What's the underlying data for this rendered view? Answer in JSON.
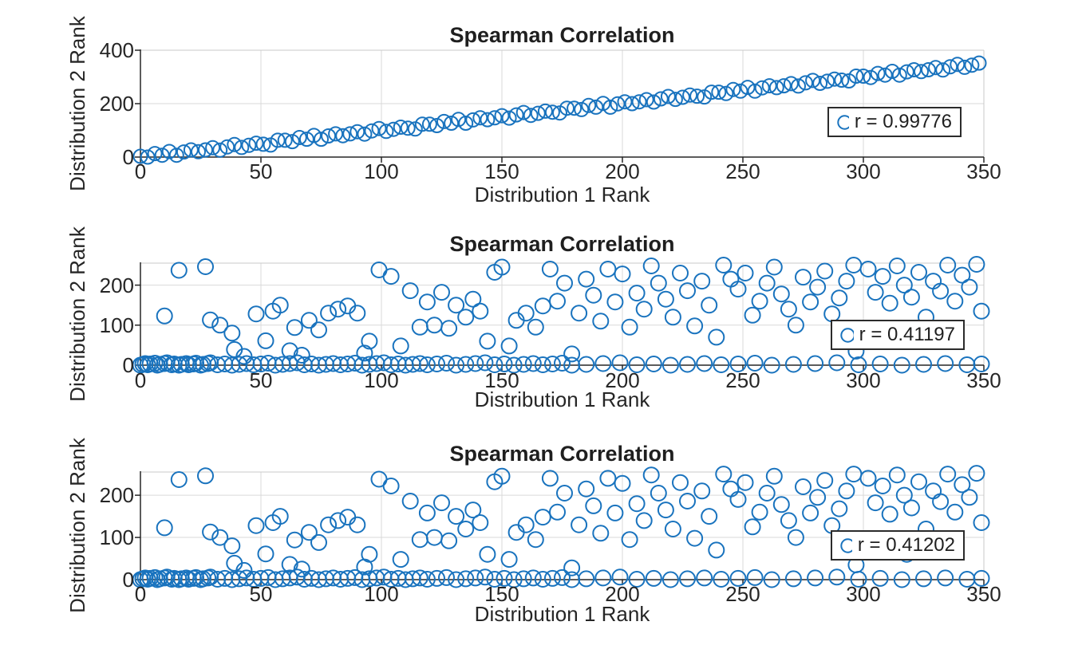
{
  "figure": {
    "background": "#ffffff",
    "marker_color": "#1973be",
    "axis_color": "#262626",
    "grid_color": "#d9d9d9",
    "box_color": "#c9c9c9",
    "legend_border_color": "#2b2b2b"
  },
  "chart_data": [
    {
      "type": "scatter",
      "title": "Spearman Correlation",
      "xlabel": "Distribution 1 Rank",
      "ylabel": "Distribution 2 Rank",
      "legend": "r = 0.99776",
      "xlim": [
        0,
        350
      ],
      "ylim": [
        0,
        400
      ],
      "xticks": [
        0,
        50,
        100,
        150,
        200,
        250,
        300,
        350
      ],
      "yticks": [
        0,
        200,
        400
      ],
      "grid": true,
      "legend_position": "lower right",
      "x": [
        0,
        3,
        6,
        9,
        12,
        15,
        18,
        21,
        24,
        27,
        30,
        33,
        36,
        39,
        42,
        45,
        48,
        51,
        54,
        57,
        60,
        63,
        66,
        69,
        72,
        75,
        78,
        81,
        84,
        87,
        90,
        93,
        96,
        99,
        102,
        105,
        108,
        111,
        114,
        117,
        120,
        123,
        126,
        129,
        132,
        135,
        138,
        141,
        144,
        147,
        150,
        153,
        156,
        159,
        162,
        165,
        168,
        171,
        174,
        177,
        180,
        183,
        186,
        189,
        192,
        195,
        198,
        201,
        204,
        207,
        210,
        213,
        216,
        219,
        222,
        225,
        228,
        231,
        234,
        237,
        240,
        243,
        246,
        249,
        252,
        255,
        258,
        261,
        264,
        267,
        270,
        273,
        276,
        279,
        282,
        285,
        288,
        291,
        294,
        297,
        300,
        303,
        306,
        309,
        312,
        315,
        318,
        321,
        324,
        327,
        330,
        333,
        336,
        339,
        342,
        345,
        348
      ],
      "y": [
        3,
        0,
        13,
        7,
        21,
        7,
        19,
        27,
        20,
        27,
        35,
        26,
        38,
        47,
        36,
        44,
        52,
        48,
        45,
        63,
        63,
        58,
        73,
        67,
        81,
        67,
        79,
        87,
        80,
        87,
        95,
        86,
        98,
        107,
        96,
        104,
        112,
        108,
        105,
        123,
        123,
        118,
        133,
        127,
        141,
        127,
        139,
        147,
        140,
        147,
        155,
        146,
        158,
        167,
        156,
        164,
        172,
        168,
        165,
        183,
        183,
        178,
        193,
        187,
        201,
        187,
        199,
        207,
        200,
        207,
        215,
        206,
        218,
        227,
        216,
        224,
        232,
        228,
        225,
        243,
        243,
        238,
        253,
        247,
        261,
        247,
        259,
        267,
        260,
        267,
        275,
        266,
        278,
        287,
        276,
        284,
        292,
        288,
        285,
        303,
        303,
        298,
        313,
        307,
        321,
        307,
        319,
        327,
        320,
        327,
        335,
        326,
        338,
        347,
        336,
        344,
        352
      ]
    },
    {
      "type": "scatter",
      "title": "Spearman Correlation",
      "xlabel": "Distribution 1 Rank",
      "ylabel": "Distribution 2 Rank",
      "legend": "r = 0.41197",
      "xlim": [
        0,
        350
      ],
      "ylim": [
        0,
        255
      ],
      "xticks": [
        0,
        50,
        100,
        150,
        200,
        250,
        300,
        350
      ],
      "yticks": [
        0,
        100,
        200
      ],
      "grid": true,
      "legend_position": "right",
      "x": [
        0,
        1,
        2,
        3,
        4,
        6,
        7,
        8,
        10,
        11,
        13,
        14,
        16,
        17,
        19,
        20,
        22,
        23,
        25,
        26,
        28,
        29,
        32,
        35,
        38,
        41,
        44,
        47,
        50,
        53,
        56,
        59,
        62,
        65,
        68,
        71,
        74,
        77,
        80,
        83,
        86,
        89,
        92,
        95,
        98,
        101,
        104,
        107,
        110,
        113,
        116,
        119,
        123,
        127,
        131,
        135,
        139,
        143,
        147,
        151,
        155,
        159,
        163,
        167,
        171,
        175,
        179,
        185,
        192,
        199,
        206,
        213,
        220,
        227,
        234,
        241,
        248,
        255,
        262,
        271,
        280,
        289,
        298,
        307,
        316,
        325,
        334,
        343,
        349,
        16,
        27,
        10,
        29,
        33,
        38,
        39,
        43,
        52,
        55,
        48,
        58,
        62,
        67,
        64,
        70,
        74,
        78,
        82,
        86,
        90,
        95,
        99,
        104,
        93,
        108,
        112,
        116,
        119,
        122,
        125,
        128,
        131,
        135,
        138,
        141,
        144,
        147,
        150,
        153,
        156,
        160,
        164,
        167,
        170,
        173,
        176,
        179,
        182,
        185,
        188,
        191,
        194,
        197,
        200,
        203,
        206,
        209,
        212,
        215,
        218,
        221,
        224,
        227,
        230,
        233,
        236,
        239,
        242,
        245,
        248,
        251,
        254,
        257,
        260,
        263,
        266,
        269,
        272,
        275,
        278,
        281,
        284,
        287,
        290,
        293,
        296,
        299,
        302,
        305,
        308,
        311,
        314,
        317,
        320,
        323,
        326,
        329,
        332,
        335,
        338,
        341,
        344,
        347,
        349,
        337,
        318,
        297
      ],
      "y": [
        0,
        2,
        4,
        1,
        3,
        5,
        0,
        2,
        4,
        6,
        1,
        3,
        0,
        2,
        4,
        1,
        3,
        5,
        0,
        2,
        4,
        6,
        1,
        3,
        0,
        2,
        4,
        1,
        3,
        5,
        0,
        2,
        4,
        6,
        1,
        3,
        0,
        2,
        4,
        1,
        3,
        5,
        0,
        2,
        4,
        6,
        1,
        3,
        0,
        2,
        4,
        1,
        3,
        5,
        0,
        2,
        4,
        6,
        1,
        3,
        0,
        2,
        4,
        1,
        3,
        5,
        0,
        2,
        4,
        6,
        1,
        3,
        0,
        2,
        4,
        1,
        3,
        5,
        0,
        2,
        4,
        6,
        1,
        3,
        0,
        2,
        4,
        1,
        3,
        237,
        246,
        123,
        113,
        100,
        80,
        39,
        22,
        61,
        135,
        128,
        150,
        36,
        25,
        94,
        112,
        88,
        130,
        140,
        148,
        130,
        60,
        238,
        222,
        30,
        48,
        186,
        95,
        158,
        100,
        182,
        92,
        150,
        120,
        165,
        135,
        60,
        232,
        245,
        48,
        112,
        130,
        95,
        148,
        240,
        160,
        205,
        28,
        130,
        215,
        175,
        110,
        240,
        158,
        228,
        95,
        180,
        140,
        248,
        205,
        165,
        120,
        230,
        186,
        98,
        210,
        150,
        70,
        250,
        215,
        190,
        230,
        125,
        160,
        205,
        245,
        178,
        140,
        100,
        220,
        158,
        195,
        235,
        128,
        168,
        210,
        250,
        90,
        240,
        182,
        222,
        155,
        248,
        200,
        170,
        232,
        120,
        210,
        185,
        250,
        160,
        225,
        195,
        252,
        135,
        75,
        60,
        35
      ]
    },
    {
      "type": "scatter",
      "title": "Spearman Correlation",
      "xlabel": "Distribution 1 Rank",
      "ylabel": "Distribution 2 Rank",
      "legend": "r = 0.41202",
      "xlim": [
        0,
        350
      ],
      "ylim": [
        0,
        255
      ],
      "xticks": [
        0,
        50,
        100,
        150,
        200,
        250,
        300,
        350
      ],
      "yticks": [
        0,
        100,
        200
      ],
      "grid": true,
      "legend_position": "right",
      "x": [
        0,
        1,
        2,
        3,
        4,
        6,
        7,
        8,
        10,
        11,
        13,
        14,
        16,
        17,
        19,
        20,
        22,
        23,
        25,
        26,
        28,
        29,
        32,
        35,
        38,
        41,
        44,
        47,
        50,
        53,
        56,
        59,
        62,
        65,
        68,
        71,
        74,
        77,
        80,
        83,
        86,
        89,
        92,
        95,
        98,
        101,
        104,
        107,
        110,
        113,
        116,
        119,
        123,
        127,
        131,
        135,
        139,
        143,
        147,
        151,
        155,
        159,
        163,
        167,
        171,
        175,
        179,
        185,
        192,
        199,
        206,
        213,
        220,
        227,
        234,
        241,
        248,
        255,
        262,
        271,
        280,
        289,
        298,
        307,
        316,
        325,
        334,
        343,
        349,
        16,
        27,
        10,
        29,
        33,
        38,
        39,
        43,
        52,
        55,
        48,
        58,
        62,
        67,
        64,
        70,
        74,
        78,
        82,
        86,
        90,
        95,
        99,
        104,
        93,
        108,
        112,
        116,
        119,
        122,
        125,
        128,
        131,
        135,
        138,
        141,
        144,
        147,
        150,
        153,
        156,
        160,
        164,
        167,
        170,
        173,
        176,
        179,
        182,
        185,
        188,
        191,
        194,
        197,
        200,
        203,
        206,
        209,
        212,
        215,
        218,
        221,
        224,
        227,
        230,
        233,
        236,
        239,
        242,
        245,
        248,
        251,
        254,
        257,
        260,
        263,
        266,
        269,
        272,
        275,
        278,
        281,
        284,
        287,
        290,
        293,
        296,
        299,
        302,
        305,
        308,
        311,
        314,
        317,
        320,
        323,
        326,
        329,
        332,
        335,
        338,
        341,
        344,
        347,
        349,
        337,
        318,
        297
      ],
      "y": [
        0,
        2,
        4,
        1,
        3,
        5,
        0,
        2,
        4,
        6,
        1,
        3,
        0,
        2,
        4,
        1,
        3,
        5,
        0,
        2,
        4,
        6,
        1,
        3,
        0,
        2,
        4,
        1,
        3,
        5,
        0,
        2,
        4,
        6,
        1,
        3,
        0,
        2,
        4,
        1,
        3,
        5,
        0,
        2,
        4,
        6,
        1,
        3,
        0,
        2,
        4,
        1,
        3,
        5,
        0,
        2,
        4,
        6,
        1,
        3,
        0,
        2,
        4,
        1,
        3,
        5,
        0,
        2,
        4,
        6,
        1,
        3,
        0,
        2,
        4,
        1,
        3,
        5,
        0,
        2,
        4,
        6,
        1,
        3,
        0,
        2,
        4,
        1,
        3,
        237,
        246,
        123,
        113,
        100,
        80,
        39,
        22,
        61,
        135,
        128,
        150,
        36,
        25,
        94,
        112,
        88,
        130,
        140,
        148,
        130,
        60,
        238,
        222,
        30,
        48,
        186,
        95,
        158,
        100,
        182,
        92,
        150,
        120,
        165,
        135,
        60,
        232,
        245,
        48,
        112,
        130,
        95,
        148,
        240,
        160,
        205,
        28,
        130,
        215,
        175,
        110,
        240,
        158,
        228,
        95,
        180,
        140,
        248,
        205,
        165,
        120,
        230,
        186,
        98,
        210,
        150,
        70,
        250,
        215,
        190,
        230,
        125,
        160,
        205,
        245,
        178,
        140,
        100,
        220,
        158,
        195,
        235,
        128,
        168,
        210,
        250,
        90,
        240,
        182,
        222,
        155,
        248,
        200,
        170,
        232,
        120,
        210,
        185,
        250,
        160,
        225,
        195,
        252,
        135,
        75,
        60,
        35
      ]
    }
  ]
}
